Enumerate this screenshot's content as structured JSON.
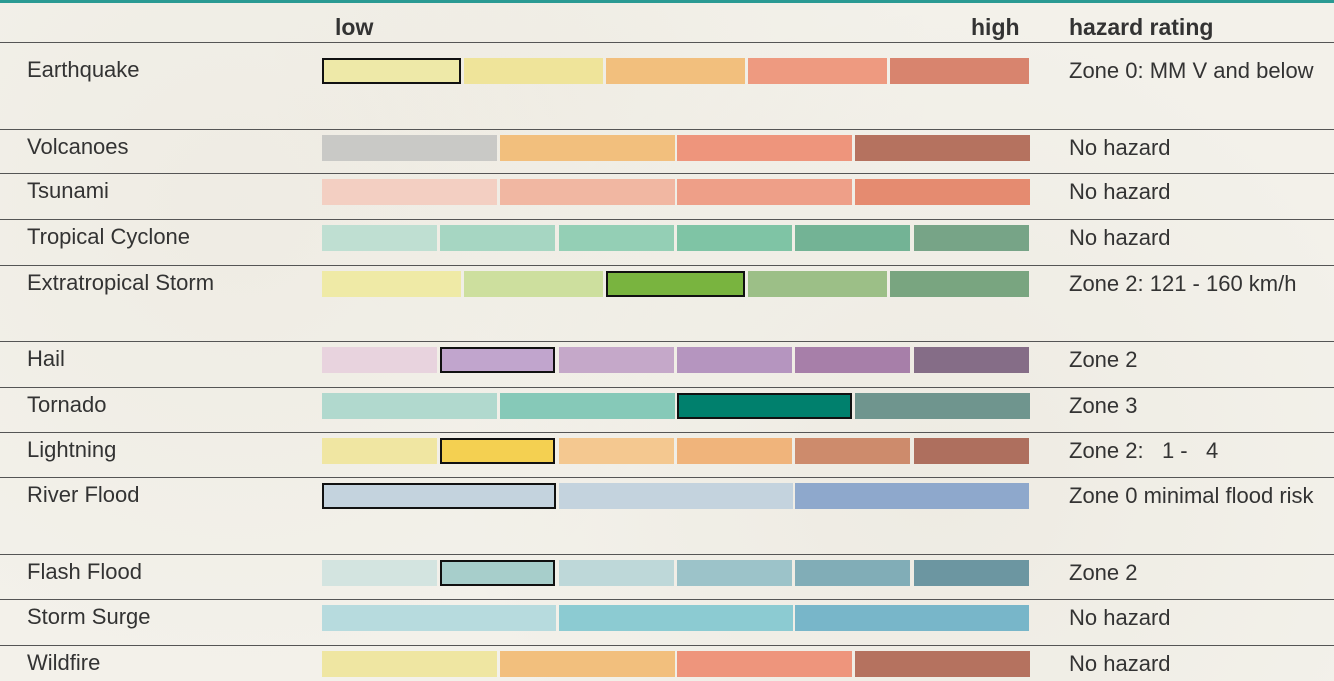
{
  "chart_data": {
    "type": "table",
    "header": {
      "low": "low",
      "high": "high",
      "rating": "hazard rating"
    },
    "rows": [
      {
        "hazard": "Earthquake",
        "rating": "Zone 0: MM V and below",
        "levels": 5,
        "colors": [
          "#eee9a8",
          "#efe49a",
          "#f2bf7d",
          "#ee9a80",
          "#d8846e"
        ],
        "selected": [
          0,
          0
        ]
      },
      {
        "hazard": "Volcanoes",
        "rating": "No hazard",
        "levels": 4,
        "colors": [
          "#c9c9c6",
          "#f2bf7d",
          "#ee957c",
          "#b5725f"
        ],
        "selected": null
      },
      {
        "hazard": "Tsunami",
        "rating": "No hazard",
        "levels": 4,
        "colors": [
          "#f3cfc2",
          "#f1b7a2",
          "#ee9f88",
          "#e58b70"
        ],
        "selected": null
      },
      {
        "hazard": "Tropical Cyclone",
        "rating": "No hazard",
        "levels": 6,
        "colors": [
          "#bfdfd2",
          "#a6d6c2",
          "#94cfb5",
          "#7fc4a5",
          "#73b395",
          "#77a487"
        ],
        "selected": null
      },
      {
        "hazard": "Extratropical Storm",
        "rating": "Zone 2: 121 - 160 km/h",
        "levels": 5,
        "colors": [
          "#efeaa6",
          "#cddf9e",
          "#79b43f",
          "#9cbf87",
          "#79a580"
        ],
        "selected": [
          2,
          2
        ]
      },
      {
        "hazard": "Hail",
        "rating": "Zone 2",
        "levels": 6,
        "colors": [
          "#e8d3de",
          "#c1a5cd",
          "#c5a8c9",
          "#b595bf",
          "#a77fa9",
          "#856d87"
        ],
        "selected": [
          1,
          1
        ]
      },
      {
        "hazard": "Tornado",
        "rating": "Zone 3",
        "levels": 4,
        "colors": [
          "#b1d9ce",
          "#86c9b8",
          "#00806d",
          "#6f958e"
        ],
        "selected": [
          2,
          2
        ]
      },
      {
        "hazard": "Lightning",
        "rating": "Zone 2:   1 -   4",
        "levels": 6,
        "colors": [
          "#f0e6a2",
          "#f4d051",
          "#f4c890",
          "#f0b47b",
          "#cd8b6c",
          "#ae6f5e"
        ],
        "selected": [
          1,
          1
        ]
      },
      {
        "hazard": "River Flood",
        "rating": "Zone 0 minimal flood risk",
        "levels": 3,
        "colors": [
          "#c4d3de",
          "#c4d3de",
          "#8ea8cc"
        ],
        "selected": [
          0,
          0
        ]
      },
      {
        "hazard": "Flash Flood",
        "rating": "Zone 2",
        "levels": 6,
        "colors": [
          "#d3e4e0",
          "#a7cecb",
          "#bed8d9",
          "#9cc3c9",
          "#81adb7",
          "#6c96a1"
        ],
        "selected": [
          1,
          1
        ]
      },
      {
        "hazard": "Storm Surge",
        "rating": "No hazard",
        "levels": 3,
        "colors": [
          "#b7dbde",
          "#8ccbd2",
          "#78b6c9"
        ],
        "selected": null
      },
      {
        "hazard": "Wildfire",
        "rating": "No hazard",
        "levels": 4,
        "colors": [
          "#efe6a2",
          "#f2bf7d",
          "#ee957c",
          "#b5725f"
        ],
        "selected": null
      }
    ]
  }
}
